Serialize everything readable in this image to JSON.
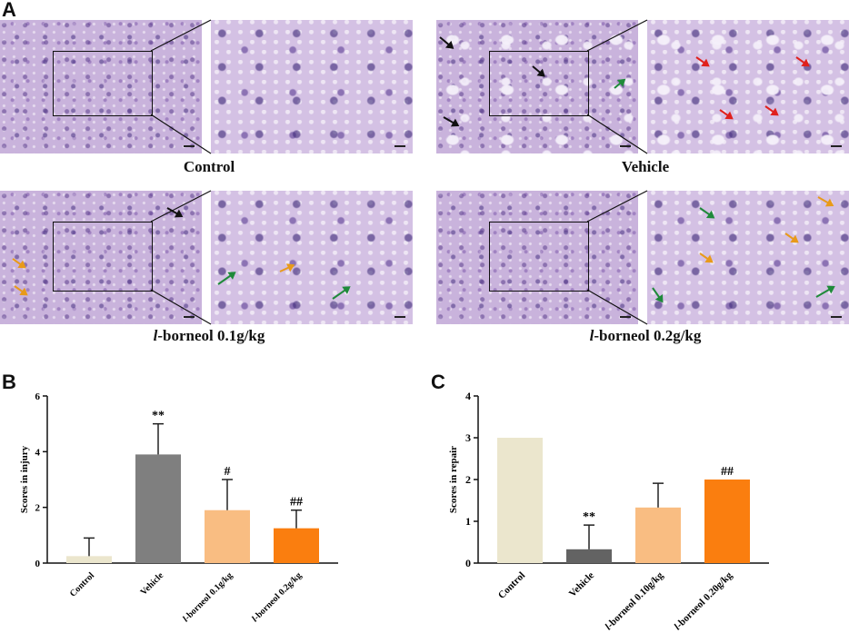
{
  "panel_labels": {
    "a": "A",
    "b": "B",
    "c": "C"
  },
  "panel_a": {
    "captions": {
      "control": "Control",
      "vehicle": "Vehicle",
      "l1_prefix": "l",
      "l1_rest": "-borneol 0.1g/kg",
      "l2_prefix": "l",
      "l2_rest": "-borneol 0.2g/kg"
    },
    "arrow_colors": {
      "black": "#111111",
      "red": "#e0201c",
      "green": "#1f8a3a",
      "orange": "#e89a1a"
    }
  },
  "chart_data": [
    {
      "type": "bar",
      "ylabel": "Scores in injury",
      "categories": [
        "Control",
        "Vehicle",
        "l-borneol 0.1g/kg",
        "l-borneol 0.2g/kg"
      ],
      "values": [
        0.25,
        3.9,
        1.9,
        1.25
      ],
      "errors": [
        0.65,
        1.1,
        1.1,
        0.65
      ],
      "annotations": [
        "",
        "**",
        "#",
        "##"
      ],
      "colors": [
        "#ebe6cd",
        "#7f7f7f",
        "#f9bd82",
        "#fa7e0f"
      ],
      "ylim": [
        0,
        6
      ],
      "yticks": [
        0,
        2,
        4,
        6
      ]
    },
    {
      "type": "bar",
      "ylabel": "Scores in  repair",
      "categories": [
        "Control",
        "Vehicle",
        "l-borneol 0.10g/kg",
        "l-borneol 0.20g/kg"
      ],
      "values": [
        3.0,
        0.33,
        1.33,
        2.0
      ],
      "errors": [
        0.0,
        0.58,
        0.58,
        0.0
      ],
      "annotations": [
        "",
        "**",
        "",
        "##"
      ],
      "colors": [
        "#ebe6cd",
        "#636363",
        "#f9bd82",
        "#fa7e0f"
      ],
      "ylim": [
        0,
        4
      ],
      "yticks": [
        0,
        1,
        2,
        3,
        4
      ]
    }
  ]
}
